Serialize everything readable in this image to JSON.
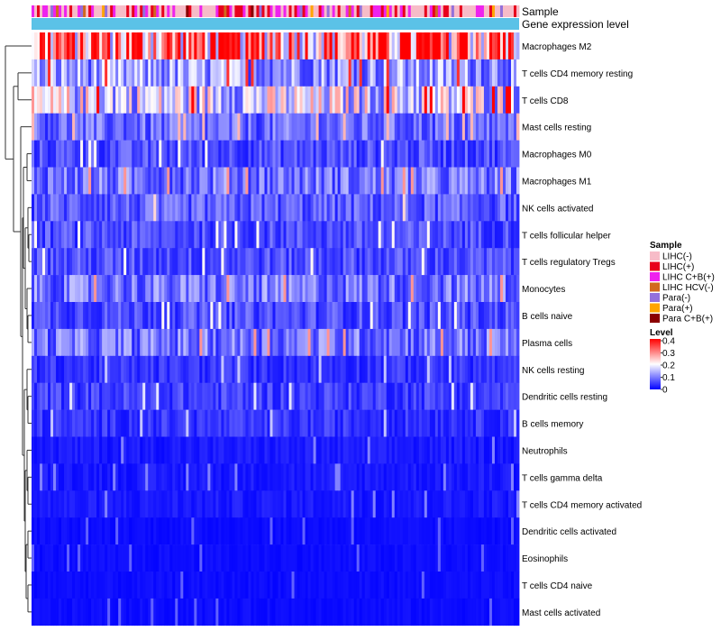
{
  "chart_data": {
    "type": "heatmap",
    "annotation_tracks": [
      "Sample",
      "Gene expression level"
    ],
    "rows": [
      "Macrophages M2",
      "T cells CD4 memory resting",
      "T cells CD8",
      "Mast cells resting",
      "Macrophages M0",
      "Macrophages M1",
      "NK cells activated",
      "T cells follicular helper",
      "T cells regulatory  Tregs",
      "Monocytes",
      "B cells naive",
      "Plasma cells",
      "NK cells resting",
      "Dendritic cells resting",
      "B cells memory",
      "Neutrophils",
      "T cells gamma delta",
      "T cells CD4 memory activated",
      "Dendritic cells activated",
      "Eosinophils",
      "T cells CD4 naive",
      "Mast cells activated"
    ],
    "row_mean_levels": [
      0.3,
      0.12,
      0.17,
      0.08,
      0.06,
      0.09,
      0.07,
      0.06,
      0.06,
      0.09,
      0.06,
      0.09,
      0.04,
      0.05,
      0.04,
      0.02,
      0.02,
      0.02,
      0.01,
      0.01,
      0.01,
      0.01
    ],
    "legends": {
      "sample": {
        "title": "Sample",
        "entries": [
          {
            "label": "LIHC(-)",
            "color": "#f7bcc8"
          },
          {
            "label": "LIHC(+)",
            "color": "#e8001c"
          },
          {
            "label": "LIHC C+B(+)",
            "color": "#ee22ee"
          },
          {
            "label": "LIHC HCV(-)",
            "color": "#d2691e"
          },
          {
            "label": "Para(-)",
            "color": "#9370db"
          },
          {
            "label": "Para(+)",
            "color": "#ffa500"
          },
          {
            "label": "Para C+B(+)",
            "color": "#8b0000"
          }
        ]
      },
      "level": {
        "title": "Level",
        "ticks": [
          "0.4",
          "0.3",
          "0.2",
          "0.1",
          "0"
        ],
        "range": [
          0,
          0.4
        ],
        "colors": [
          "#0000ff",
          "#ffffff",
          "#ff0000"
        ]
      }
    },
    "expression_level_color": "#5bc2e7",
    "dendrogram_side": "left"
  }
}
